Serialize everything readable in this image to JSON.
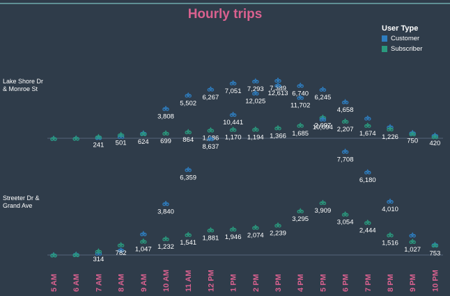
{
  "chart_data": {
    "type": "scatter",
    "title": "Hourly trips",
    "legend": {
      "title": "User Type",
      "placement": "top-right",
      "items": [
        {
          "label": "Customer",
          "color": "#2e7dbf"
        },
        {
          "label": "Subscriber",
          "color": "#2a9a7e"
        }
      ]
    },
    "categories": [
      "5 AM",
      "6 AM",
      "7 AM",
      "8 AM",
      "9 AM",
      "10 AM",
      "11 AM",
      "12 PM",
      "1 PM",
      "2 PM",
      "3 PM",
      "4 PM",
      "5 PM",
      "6 PM",
      "7 PM",
      "8 PM",
      "9 PM",
      "10 PM"
    ],
    "panels": [
      {
        "station": "Lake Shore Dr & Monroe St",
        "series": [
          {
            "name": "Customer",
            "values": [
              30,
              60,
              140,
              280,
              700,
              3808,
              5502,
              6267,
              7051,
              7293,
              7389,
              6740,
              6245,
              4658,
              2600,
              1500,
              750,
              420
            ]
          },
          {
            "name": "Subscriber",
            "values": [
              15,
              40,
              241,
              501,
              624,
              699,
              864,
              1086,
              1170,
              1194,
              1366,
              1685,
              2697,
              2207,
              1674,
              1226,
              600,
              250
            ]
          }
        ],
        "labels": [
          {
            "i": 2,
            "v": "241"
          },
          {
            "i": 3,
            "v": "501"
          },
          {
            "i": 4,
            "v": "624"
          },
          {
            "i": 5,
            "v": "3,808"
          },
          {
            "i": 5,
            "v": "699"
          },
          {
            "i": 6,
            "v": "5,502"
          },
          {
            "i": 6,
            "v": "864"
          },
          {
            "i": 7,
            "v": "6,267"
          },
          {
            "i": 7,
            "v": "1,086"
          },
          {
            "i": 8,
            "v": "7,051"
          },
          {
            "i": 8,
            "v": "1,170"
          },
          {
            "i": 9,
            "v": "7,293"
          },
          {
            "i": 9,
            "v": "1,194"
          },
          {
            "i": 10,
            "v": "7,389"
          },
          {
            "i": 10,
            "v": "1,366"
          },
          {
            "i": 11,
            "v": "6,740"
          },
          {
            "i": 11,
            "v": "1,685"
          },
          {
            "i": 12,
            "v": "6,245"
          },
          {
            "i": 12,
            "v": "2,697"
          },
          {
            "i": 13,
            "v": "4,658"
          },
          {
            "i": 13,
            "v": "2,207"
          },
          {
            "i": 14,
            "v": "1,674"
          },
          {
            "i": 15,
            "v": "1,226"
          },
          {
            "i": 16,
            "v": "750"
          },
          {
            "i": 17,
            "v": "420"
          }
        ]
      },
      {
        "station": "Streeter Dr & Grand Ave",
        "series": [
          {
            "name": "Customer",
            "values": [
              40,
              80,
              160,
              400,
              1600,
              3840,
              6359,
              8637,
              10441,
              12025,
              12613,
              11702,
              10094,
              7708,
              6180,
              4010,
              1500,
              800
            ]
          },
          {
            "name": "Subscriber",
            "values": [
              20,
              50,
              314,
              782,
              1047,
              1232,
              1541,
              1881,
              1946,
              2074,
              2239,
              3295,
              3909,
              3054,
              2444,
              1516,
              1027,
              753
            ]
          }
        ],
        "labels": [
          {
            "i": 2,
            "v": "314"
          },
          {
            "i": 3,
            "v": "782"
          },
          {
            "i": 4,
            "v": "1,047"
          },
          {
            "i": 5,
            "v": "3,840"
          },
          {
            "i": 5,
            "v": "1,232"
          },
          {
            "i": 6,
            "v": "6,359"
          },
          {
            "i": 6,
            "v": "1,541"
          },
          {
            "i": 7,
            "v": "8,637"
          },
          {
            "i": 7,
            "v": "1,881"
          },
          {
            "i": 8,
            "v": "10,441"
          },
          {
            "i": 8,
            "v": "1,946"
          },
          {
            "i": 9,
            "v": "12,025"
          },
          {
            "i": 9,
            "v": "2,074"
          },
          {
            "i": 10,
            "v": "12,613"
          },
          {
            "i": 10,
            "v": "2,239"
          },
          {
            "i": 11,
            "v": "11,702"
          },
          {
            "i": 11,
            "v": "3,295"
          },
          {
            "i": 12,
            "v": "10,094"
          },
          {
            "i": 12,
            "v": "3,909"
          },
          {
            "i": 13,
            "v": "7,708"
          },
          {
            "i": 13,
            "v": "3,054"
          },
          {
            "i": 14,
            "v": "6,180"
          },
          {
            "i": 14,
            "v": "2,444"
          },
          {
            "i": 15,
            "v": "4,010"
          },
          {
            "i": 15,
            "v": "1,516"
          },
          {
            "i": 16,
            "v": "1,027"
          },
          {
            "i": 17,
            "v": "753"
          }
        ]
      }
    ],
    "marker_icon": "bike-icon",
    "grid": false
  }
}
